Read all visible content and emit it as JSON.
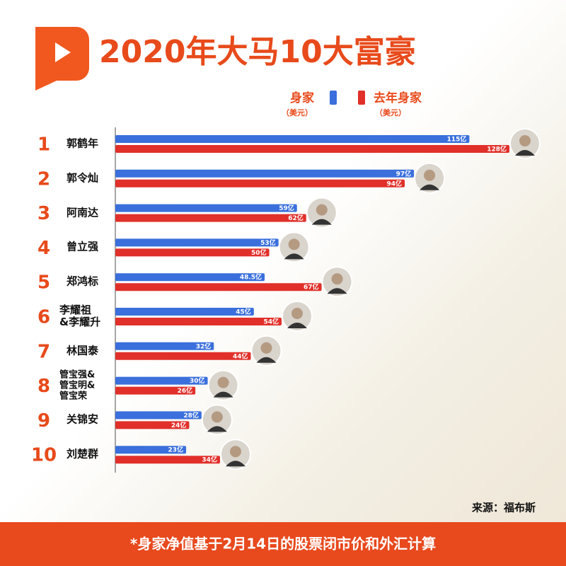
{
  "chart_data": {
    "type": "bar",
    "orientation": "horizontal",
    "title": "2020年大马10大富豪",
    "ranks": [
      1,
      2,
      3,
      4,
      5,
      6,
      7,
      8,
      9,
      10
    ],
    "categories": [
      "郭鹤年",
      "郭令灿",
      "阿南达",
      "曾立强",
      "郑鸿标",
      "李耀祖\n&李耀升",
      "林国泰",
      "管宝强&\n管宝明&\n管宝荣",
      "关锦安",
      "刘楚群"
    ],
    "unit_note": "（美元）",
    "series": [
      {
        "name": "身家",
        "color": "#3a6fdc",
        "values": [
          115,
          97,
          59,
          53,
          48.5,
          45,
          32,
          30,
          28,
          23
        ],
        "value_labels": [
          "115亿",
          "97亿",
          "59亿",
          "53亿",
          "48.5亿",
          "45亿",
          "32亿",
          "30亿",
          "28亿",
          "23亿"
        ]
      },
      {
        "name": "去年身家",
        "color": "#e1302a",
        "values": [
          128,
          94,
          62,
          50,
          67,
          54,
          44,
          26,
          24,
          34
        ],
        "value_labels": [
          "128亿",
          "94亿",
          "62亿",
          "50亿",
          "67亿",
          "54亿",
          "44亿",
          "26亿",
          "24亿",
          "34亿"
        ]
      }
    ],
    "source": "来源：福布斯",
    "footnote": "*身家净值基于2月14日的股票闭市价和外汇计算"
  }
}
